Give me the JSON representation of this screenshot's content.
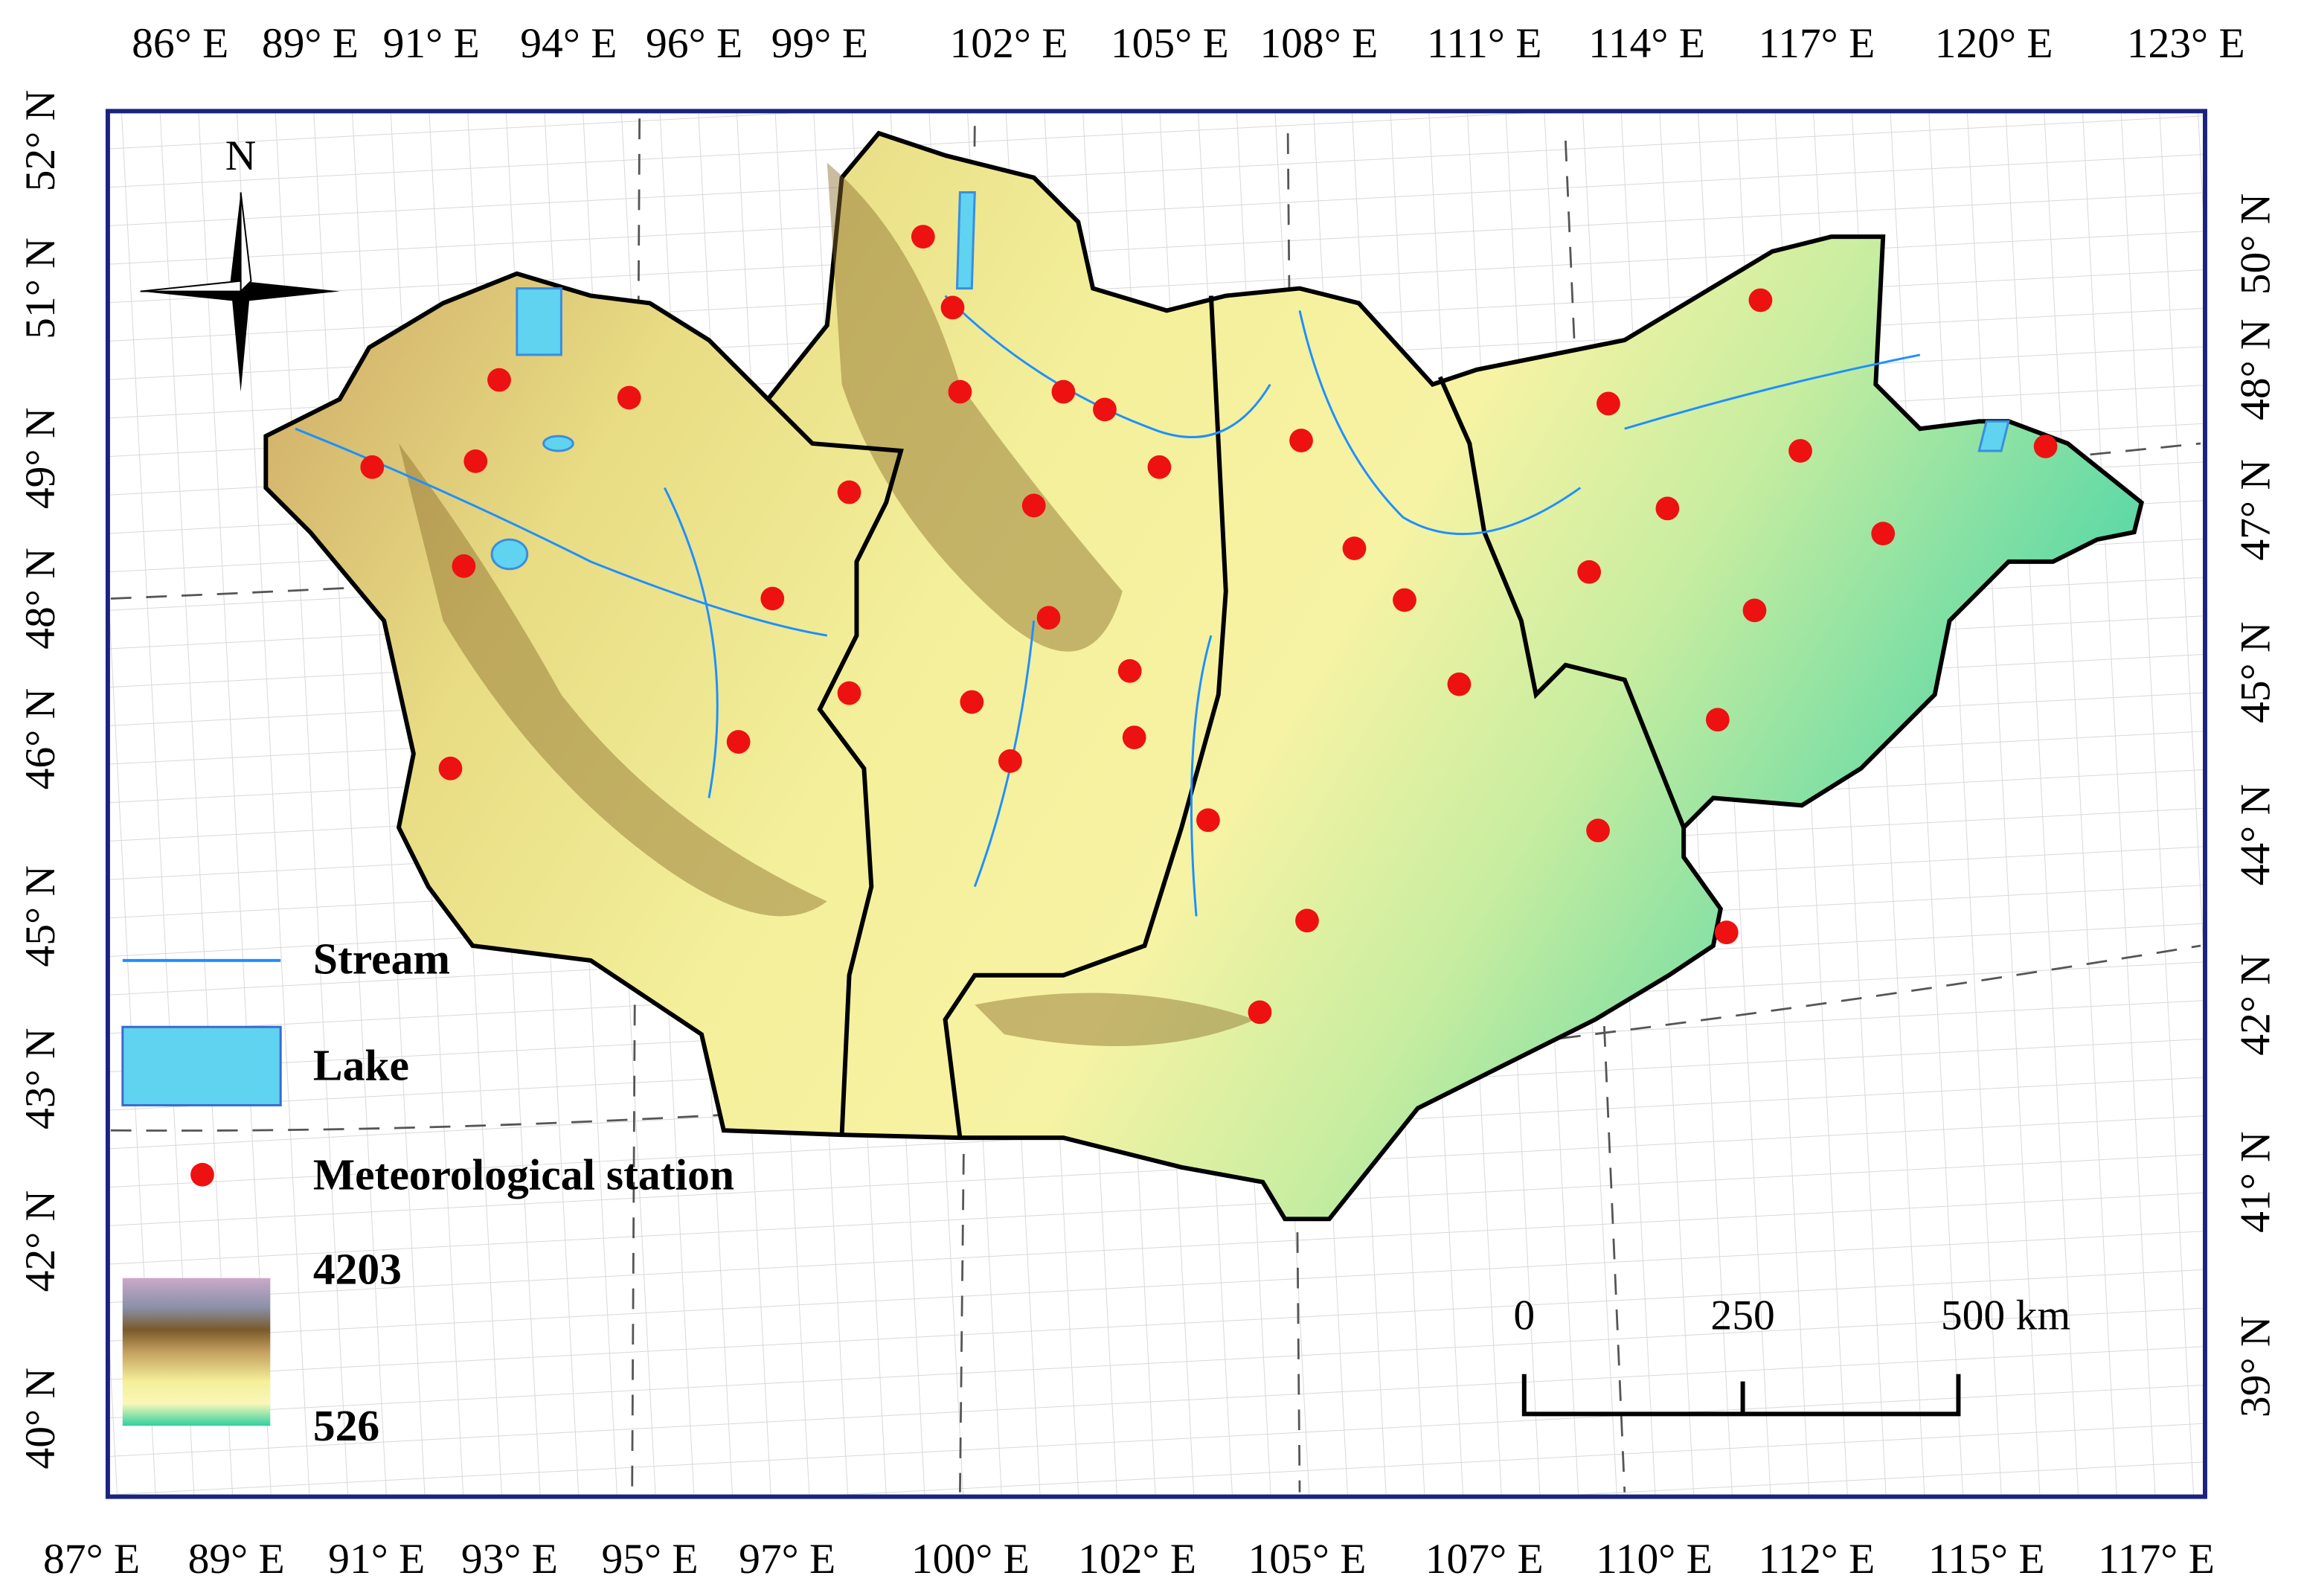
{
  "map": {
    "north_label": "N",
    "top_lon_labels": [
      "86° E",
      "89° E",
      "91° E",
      "94° E",
      "96° E",
      "99° E",
      "102° E",
      "105° E",
      "108° E",
      "111° E",
      "114° E",
      "117° E",
      "120° E",
      "123° E"
    ],
    "bottom_lon_labels": [
      "87° E",
      "89° E",
      "91° E",
      "93° E",
      "95° E",
      "97° E",
      "100° E",
      "102° E",
      "105° E",
      "107° E",
      "110° E",
      "112° E",
      "115° E",
      "117° E"
    ],
    "left_lat_labels": [
      "52° N",
      "51° N",
      "49° N",
      "48° N",
      "46° N",
      "45° N",
      "43° N",
      "42° N",
      "40° N"
    ],
    "right_lat_labels": [
      "50° N",
      "48° N",
      "47° N",
      "45° N",
      "44° N",
      "42° N",
      "41° N",
      "39° N"
    ],
    "legend": {
      "stream": "Stream",
      "lake": "Lake",
      "station": "Meteorological station",
      "elev_max": "4203",
      "elev_min": "526"
    },
    "scale_bar": {
      "start": "0",
      "mid": "250",
      "end": "500 km"
    }
  }
}
